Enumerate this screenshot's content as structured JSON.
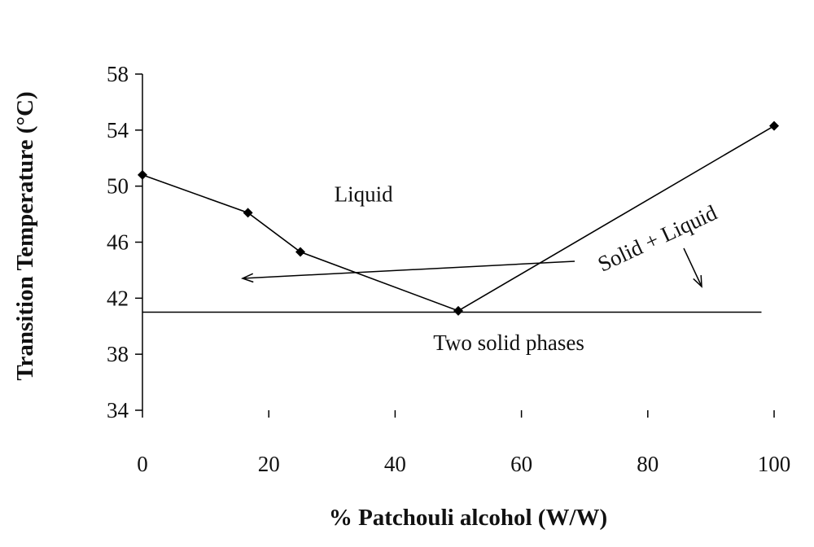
{
  "chart_data": {
    "type": "line",
    "title": "",
    "xlabel": "% Patchouli alcohol (W/W)",
    "ylabel": "Transition Temperature (°C)",
    "xlim": [
      0,
      100
    ],
    "ylim": [
      34,
      58
    ],
    "xticks": [
      0,
      20,
      40,
      60,
      80,
      100
    ],
    "yticks": [
      34,
      38,
      42,
      46,
      50,
      54,
      58
    ],
    "grid": false,
    "legend": "none",
    "series": [
      {
        "x": [
          0,
          16.7,
          25,
          50,
          100
        ],
        "y": [
          50.8,
          48.1,
          45.3,
          41.1,
          54.3
        ]
      }
    ],
    "eutectic_line": {
      "y": 41.0,
      "x_start": 0,
      "x_end": 98
    },
    "annotations": [
      {
        "id": "liquid",
        "text": "Liquid",
        "x": 35,
        "y": 48.9
      },
      {
        "id": "solid-liquid",
        "text": "Solid + Liquid",
        "x": 82,
        "y": 45.8,
        "rotation_deg": -25
      },
      {
        "id": "two-solid",
        "text": "Two solid phases",
        "x": 58,
        "y": 38.3
      }
    ],
    "colors": {
      "line": "#000000",
      "marker": "#000000",
      "text": "#111111"
    }
  }
}
